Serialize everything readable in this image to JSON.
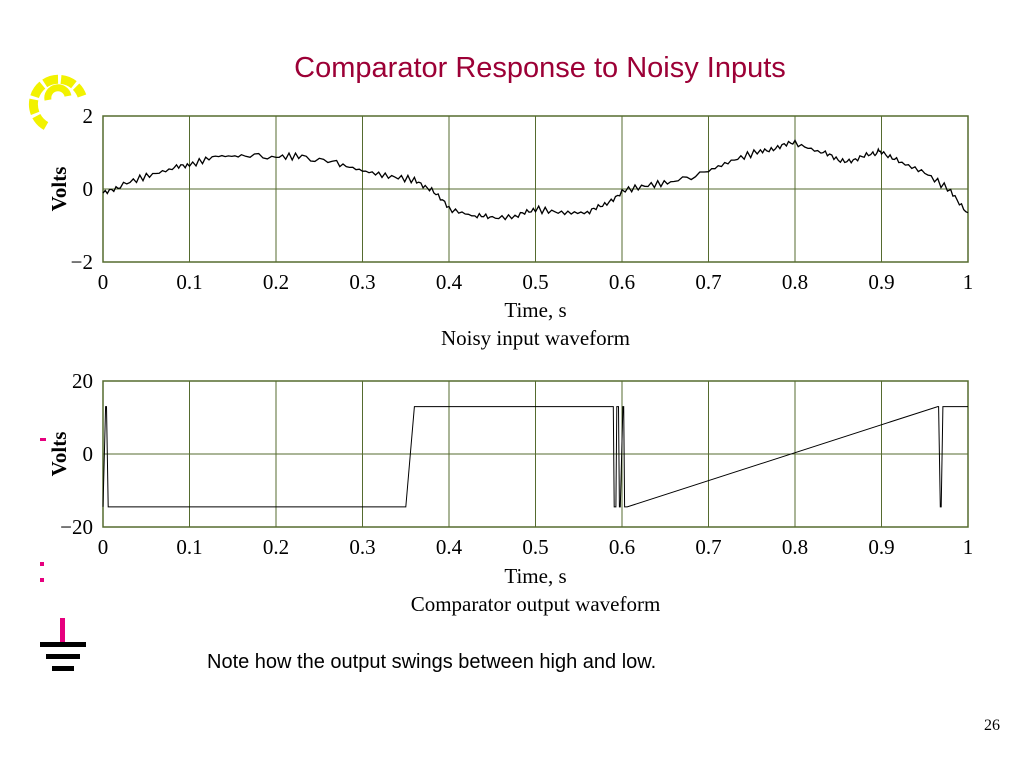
{
  "slide": {
    "title": "Comparator Response to Noisy Inputs",
    "note": "Note how the output swings between high and low.",
    "page_number": "26"
  },
  "colors": {
    "title": "#9c0036",
    "grid": "#556b2f",
    "trace": "#000000",
    "accent_yellow": "#f2f200",
    "accent_pink": "#e6007e"
  },
  "chart_data": [
    {
      "type": "line",
      "caption": "Noisy input waveform",
      "xlabel": "Time, s",
      "ylabel": "Volts",
      "xlim": [
        0,
        1
      ],
      "ylim": [
        -2,
        2
      ],
      "x_ticks": [
        "0",
        "0.1",
        "0.2",
        "0.3",
        "0.4",
        "0.5",
        "0.6",
        "0.7",
        "0.8",
        "0.9",
        "1"
      ],
      "y_ticks": [
        "2",
        "0",
        "−2"
      ],
      "grid": true,
      "series": [
        {
          "x": [
            0,
            0.02,
            0.05,
            0.08,
            0.1,
            0.13,
            0.16,
            0.2,
            0.23,
            0.27,
            0.3,
            0.33,
            0.36,
            0.38,
            0.4,
            0.43,
            0.45,
            0.48,
            0.5,
            0.53,
            0.56,
            0.58,
            0.6,
            0.63,
            0.66,
            0.7,
            0.73,
            0.76,
            0.78,
            0.8,
            0.83,
            0.85,
            0.87,
            0.89,
            0.9,
            0.92,
            0.95,
            0.98,
            1.0
          ],
          "y": [
            -0.15,
            0.1,
            0.35,
            0.55,
            0.65,
            0.9,
            0.9,
            0.88,
            0.9,
            0.7,
            0.5,
            0.35,
            0.25,
            0.0,
            -0.55,
            -0.75,
            -0.8,
            -0.75,
            -0.55,
            -0.65,
            -0.65,
            -0.45,
            -0.05,
            0.1,
            0.2,
            0.5,
            0.8,
            1.05,
            1.15,
            1.25,
            1.0,
            0.8,
            0.8,
            0.95,
            1.05,
            0.75,
            0.45,
            -0.05,
            -0.65
          ]
        }
      ]
    },
    {
      "type": "line",
      "caption": "Comparator output waveform",
      "xlabel": "Time, s",
      "ylabel": "Volts",
      "xlim": [
        0,
        1
      ],
      "ylim": [
        -20,
        20
      ],
      "x_ticks": [
        "0",
        "0.1",
        "0.2",
        "0.3",
        "0.4",
        "0.5",
        "0.6",
        "0.7",
        "0.8",
        "0.9",
        "1"
      ],
      "y_ticks": [
        "20",
        "0",
        "−20"
      ],
      "grid": true,
      "series": [
        {
          "x": [
            0,
            0.003,
            0.004,
            0.006,
            0.007,
            0.35,
            0.36,
            0.59,
            0.591,
            0.593,
            0.594,
            0.596,
            0.597,
            0.598,
            0.601,
            0.602,
            0.603,
            0.605,
            0.606,
            0.965,
            0.966,
            0.968,
            0.969,
            0.971,
            0.972,
            0.974,
            1.0
          ],
          "y": [
            -14.5,
            13,
            13,
            -14.5,
            -14.5,
            -14.5,
            13,
            13,
            -14.5,
            -14.5,
            13,
            13,
            -14.5,
            -14.5,
            13,
            13,
            -14.5,
            -14.5,
            -14.5,
            13,
            13,
            -14.5,
            -14.5,
            13,
            13,
            13,
            13
          ]
        }
      ]
    }
  ]
}
